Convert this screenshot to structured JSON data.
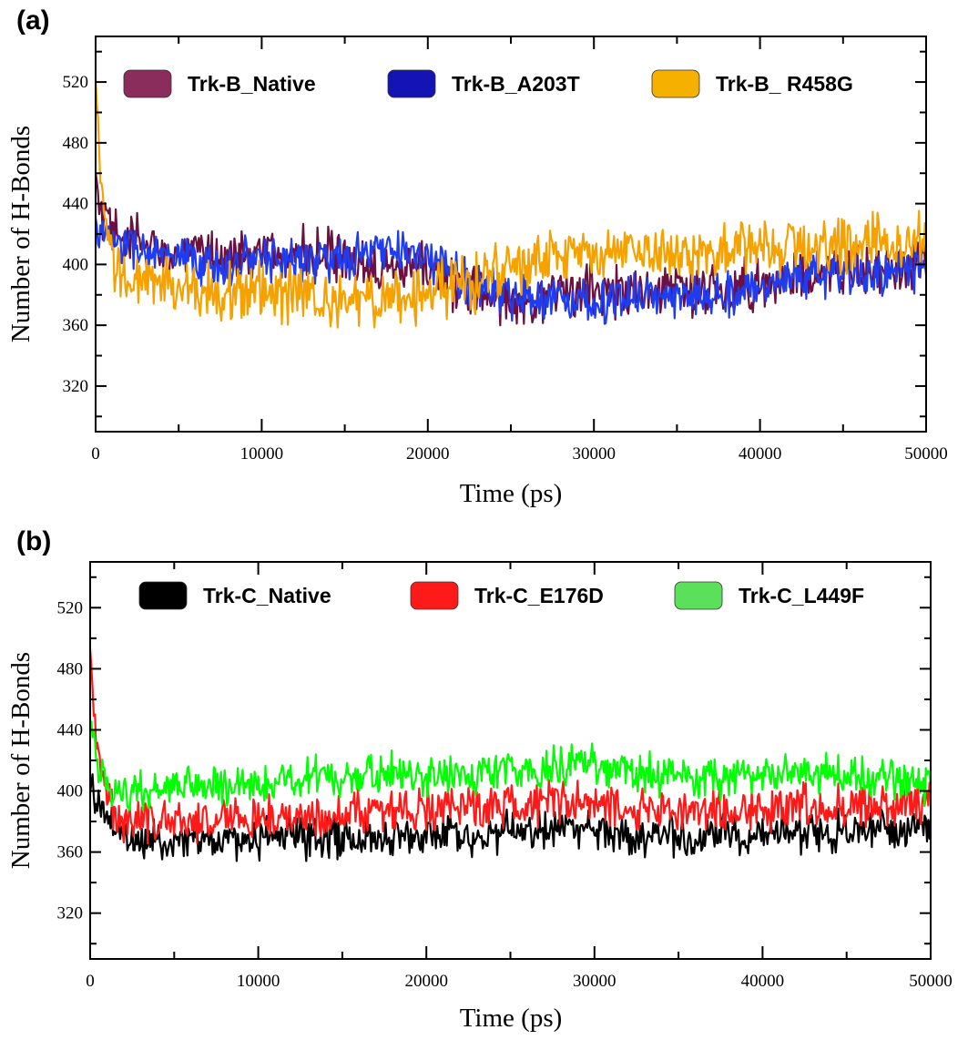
{
  "chart_data": [
    {
      "type": "line",
      "panel_label": "(a)",
      "title": "",
      "xlabel": "Time (ps)",
      "ylabel": "Number of H-Bonds",
      "xlim": [
        0,
        50000
      ],
      "ylim": [
        290,
        550
      ],
      "xticks": [
        0,
        10000,
        20000,
        30000,
        40000,
        50000
      ],
      "yticks": [
        320,
        360,
        400,
        440,
        480,
        520
      ],
      "legend_position": "top",
      "series": [
        {
          "name": "Trk-B_Native",
          "color": "#6b1040",
          "legend_color": "#8a2c5c",
          "start_value": 452,
          "noise": 13,
          "x": [
            0,
            2500,
            5000,
            7500,
            10000,
            12500,
            15000,
            17500,
            20000,
            22500,
            25000,
            27500,
            30000,
            32500,
            35000,
            37500,
            40000,
            42500,
            45000,
            47500,
            50000
          ],
          "values": [
            420,
            416,
            405,
            407,
            406,
            408,
            402,
            402,
            398,
            382,
            378,
            380,
            385,
            381,
            383,
            382,
            387,
            393,
            396,
            395,
            400
          ]
        },
        {
          "name": "Trk-B_A203T",
          "color": "#1f3cf0",
          "legend_color": "#1414b4",
          "start_value": 425,
          "noise": 11,
          "x": [
            0,
            2500,
            5000,
            7500,
            10000,
            12500,
            15000,
            17500,
            20000,
            22500,
            25000,
            27500,
            30000,
            32500,
            35000,
            37500,
            40000,
            42500,
            45000,
            47500,
            50000
          ],
          "values": [
            418,
            410,
            402,
            399,
            405,
            404,
            402,
            411,
            404,
            388,
            380,
            378,
            376,
            378,
            379,
            380,
            385,
            392,
            394,
            394,
            398
          ]
        },
        {
          "name": "Trk-B_ R458G",
          "color": "#f5a200",
          "legend_color": "#f5b000",
          "start_value": 518,
          "noise": 14,
          "x": [
            0,
            2500,
            5000,
            7500,
            10000,
            12500,
            15000,
            17500,
            20000,
            22500,
            25000,
            27500,
            30000,
            32500,
            35000,
            37500,
            40000,
            42500,
            45000,
            47500,
            50000
          ],
          "values": [
            398,
            388,
            385,
            382,
            384,
            379,
            376,
            378,
            380,
            388,
            398,
            405,
            406,
            408,
            408,
            406,
            410,
            412,
            414,
            414,
            414
          ]
        }
      ]
    },
    {
      "type": "line",
      "panel_label": "(b)",
      "title": "",
      "xlabel": "Time (ps)",
      "ylabel": "Number of H-Bonds",
      "xlim": [
        0,
        50000
      ],
      "ylim": [
        290,
        550
      ],
      "xticks": [
        0,
        10000,
        20000,
        30000,
        40000,
        50000
      ],
      "yticks": [
        320,
        360,
        400,
        440,
        480,
        520
      ],
      "legend_position": "top",
      "series": [
        {
          "name": "Trk-C_Native",
          "color": "#000000",
          "legend_color": "#000000",
          "start_value": 408,
          "noise": 10,
          "x": [
            0,
            2500,
            5000,
            7500,
            10000,
            12500,
            15000,
            17500,
            20000,
            22500,
            25000,
            27500,
            30000,
            32500,
            35000,
            37500,
            40000,
            42500,
            45000,
            47500,
            50000
          ],
          "values": [
            385,
            368,
            368,
            368,
            369,
            370,
            370,
            370,
            372,
            372,
            374,
            374,
            376,
            370,
            371,
            372,
            372,
            372,
            374,
            375,
            376
          ]
        },
        {
          "name": "Trk-C_E176D",
          "color": "#ff1a1a",
          "legend_color": "#ff1a1a",
          "start_value": 505,
          "noise": 11,
          "x": [
            0,
            2500,
            5000,
            7500,
            10000,
            12500,
            15000,
            17500,
            20000,
            22500,
            25000,
            27500,
            30000,
            32500,
            35000,
            37500,
            40000,
            42500,
            45000,
            47500,
            50000
          ],
          "values": [
            390,
            380,
            381,
            382,
            382,
            384,
            386,
            386,
            388,
            388,
            390,
            392,
            394,
            388,
            388,
            388,
            389,
            390,
            390,
            392,
            394
          ]
        },
        {
          "name": "Trk-C_L449F",
          "color": "#00ff00",
          "legend_color": "#5ae05a",
          "start_value": 455,
          "noise": 10,
          "x": [
            0,
            2500,
            5000,
            7500,
            10000,
            12500,
            15000,
            17500,
            20000,
            22500,
            25000,
            27500,
            30000,
            32500,
            35000,
            37500,
            40000,
            42500,
            45000,
            47500,
            50000
          ],
          "values": [
            400,
            398,
            402,
            404,
            405,
            408,
            410,
            412,
            410,
            412,
            414,
            415,
            420,
            412,
            410,
            408,
            410,
            410,
            412,
            410,
            404
          ]
        }
      ]
    }
  ]
}
